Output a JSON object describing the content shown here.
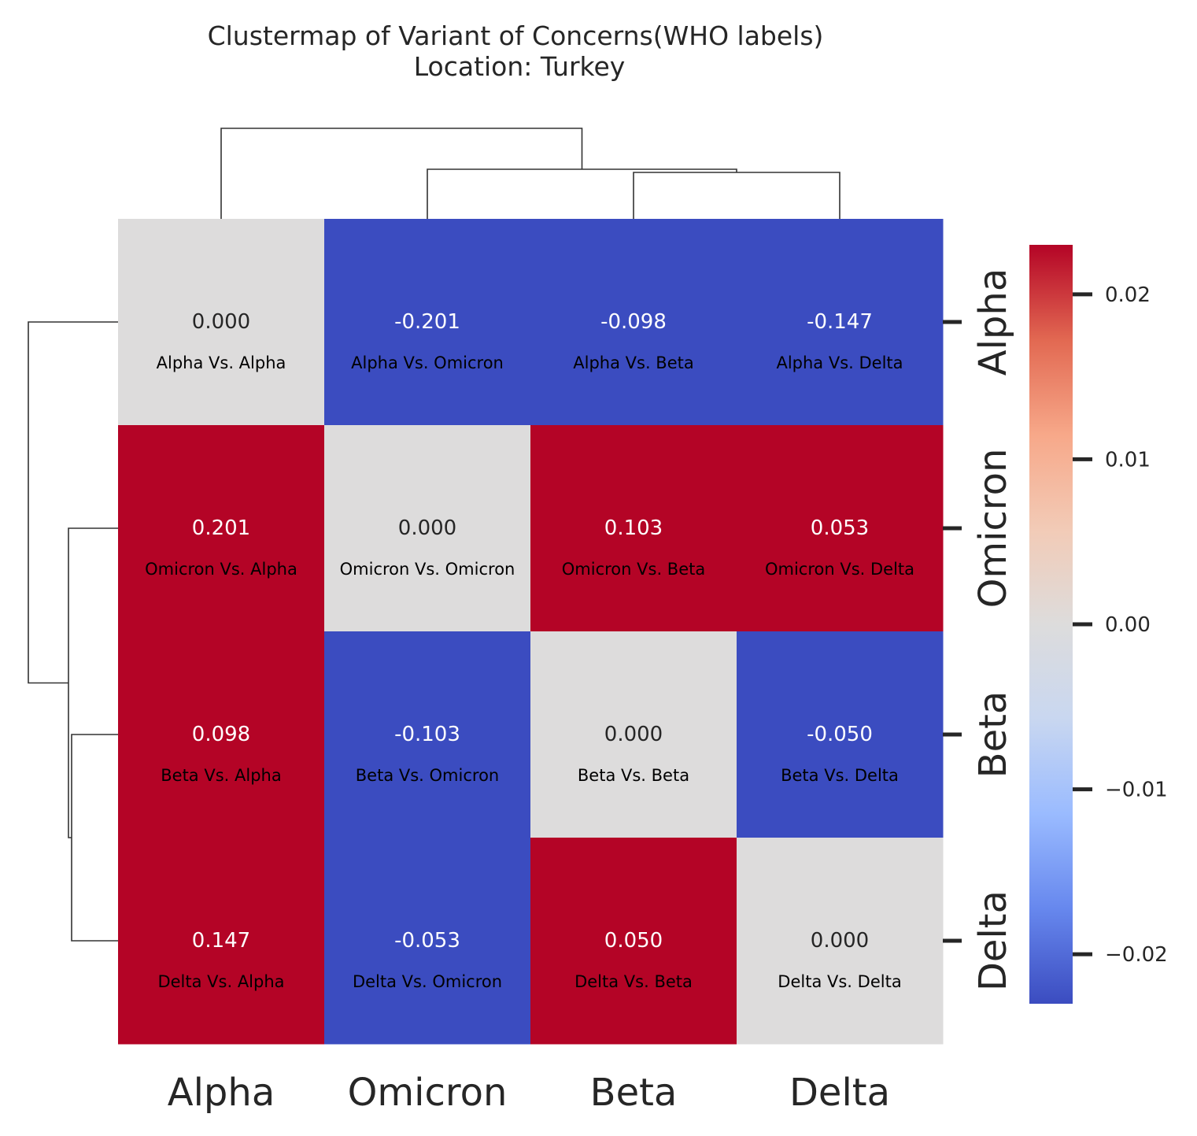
{
  "chart_data": {
    "type": "heatmap",
    "title_lines": [
      "Clustermap of Variant of Concerns(WHO labels)",
      "Location: Turkey"
    ],
    "rows": [
      "Alpha",
      "Omicron",
      "Beta",
      "Delta"
    ],
    "columns": [
      "Alpha",
      "Omicron",
      "Beta",
      "Delta"
    ],
    "values": [
      [
        0.0,
        -0.201,
        -0.098,
        -0.147
      ],
      [
        0.201,
        0.0,
        0.103,
        0.053
      ],
      [
        0.098,
        -0.103,
        0.0,
        -0.05
      ],
      [
        0.147,
        -0.053,
        0.05,
        0.0
      ]
    ],
    "value_labels": [
      [
        "0.000",
        "-0.201",
        "-0.098",
        "-0.147"
      ],
      [
        "0.201",
        "0.000",
        "0.103",
        "0.053"
      ],
      [
        "0.098",
        "-0.103",
        "0.000",
        "-0.050"
      ],
      [
        "0.147",
        "-0.053",
        "0.050",
        "0.000"
      ]
    ],
    "cell_labels": [
      [
        "Alpha Vs. Alpha",
        "Alpha Vs. Omicron",
        "Alpha Vs. Beta",
        "Alpha Vs. Delta"
      ],
      [
        "Omicron Vs. Alpha",
        "Omicron Vs. Omicron",
        "Omicron Vs. Beta",
        "Omicron Vs. Delta"
      ],
      [
        "Beta Vs. Alpha",
        "Beta Vs. Omicron",
        "Beta Vs. Beta",
        "Beta Vs. Delta"
      ],
      [
        "Delta Vs. Alpha",
        "Delta Vs. Omicron",
        "Delta Vs. Beta",
        "Delta Vs. Delta"
      ]
    ],
    "colormap": "coolwarm",
    "vmin": -0.023,
    "vmax": 0.023,
    "colors": {
      "negative": "#3b4cc0",
      "neutral": "#dddddd",
      "positive": "#b40426",
      "text_light": "#ffffff",
      "text_dark": "#262626"
    },
    "colorbar": {
      "ticks": [
        0.02,
        0.01,
        0.0,
        -0.01,
        -0.02
      ],
      "tick_labels": [
        "0.02",
        "0.01",
        "0.00",
        "−0.01",
        "−0.02"
      ],
      "stops": [
        {
          "value": -0.023,
          "color": "#3b4cc0"
        },
        {
          "value": -0.0172,
          "color": "#6788ee"
        },
        {
          "value": -0.0115,
          "color": "#9abbff"
        },
        {
          "value": -0.0057,
          "color": "#c9d7f0"
        },
        {
          "value": 0.0,
          "color": "#dddcdc"
        },
        {
          "value": 0.0057,
          "color": "#f2cbb7"
        },
        {
          "value": 0.0115,
          "color": "#f7a889"
        },
        {
          "value": 0.0172,
          "color": "#e26952"
        },
        {
          "value": 0.023,
          "color": "#b40426"
        }
      ]
    },
    "column_dendrogram": [
      {
        "left": "Alpha",
        "right": "Omicron|Beta|Delta"
      },
      {
        "left": "Omicron",
        "right": "Beta|Delta"
      },
      {
        "left": "Beta",
        "right": "Delta"
      }
    ],
    "row_dendrogram": [
      {
        "top": "Alpha",
        "bottom": "Omicron|Beta|Delta"
      },
      {
        "top": "Omicron",
        "bottom": "Beta|Delta"
      },
      {
        "top": "Beta",
        "bottom": "Delta"
      }
    ]
  }
}
